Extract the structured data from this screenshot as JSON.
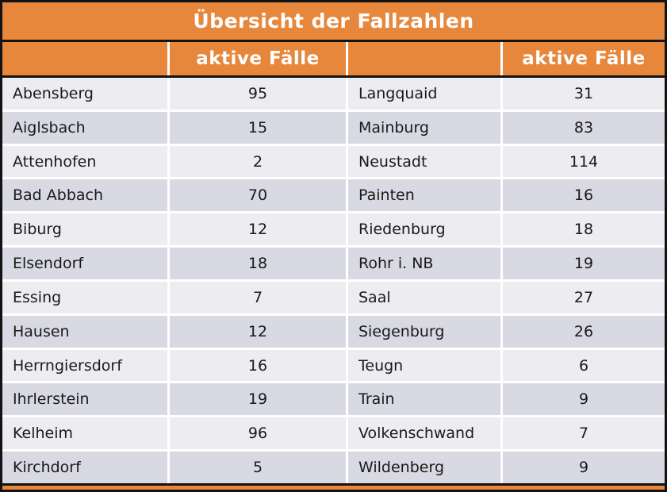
{
  "title": "Übersicht der Fallzahlen",
  "header": {
    "col2_label": "aktive Fälle",
    "col4_label": "aktive Fälle"
  },
  "rows": [
    {
      "left_name": "Abensberg",
      "left_value": "95",
      "right_name": "Langquaid",
      "right_value": "31"
    },
    {
      "left_name": "Aiglsbach",
      "left_value": "15",
      "right_name": "Mainburg",
      "right_value": "83"
    },
    {
      "left_name": "Attenhofen",
      "left_value": "2",
      "right_name": "Neustadt",
      "right_value": "114"
    },
    {
      "left_name": "Bad Abbach",
      "left_value": "70",
      "right_name": "Painten",
      "right_value": "16"
    },
    {
      "left_name": "Biburg",
      "left_value": "12",
      "right_name": "Riedenburg",
      "right_value": "18"
    },
    {
      "left_name": "Elsendorf",
      "left_value": "18",
      "right_name": "Rohr i. NB",
      "right_value": "19"
    },
    {
      "left_name": "Essing",
      "left_value": "7",
      "right_name": "Saal",
      "right_value": "27"
    },
    {
      "left_name": "Hausen",
      "left_value": "12",
      "right_name": "Siegenburg",
      "right_value": "26"
    },
    {
      "left_name": "Herrngiersdorf",
      "left_value": "16",
      "right_name": "Teugn",
      "right_value": "6"
    },
    {
      "left_name": "Ihrlerstein",
      "left_value": "19",
      "right_name": "Train",
      "right_value": "9"
    },
    {
      "left_name": "Kelheim",
      "left_value": "96",
      "right_name": "Volkenschwand",
      "right_value": "7"
    },
    {
      "left_name": "Kirchdorf",
      "left_value": "5",
      "right_name": "Wildenberg",
      "right_value": "9"
    }
  ],
  "colors": {
    "accent_orange": "#e7873c",
    "row_light": "#ececf1",
    "row_dark": "#d8d9e2",
    "border_black": "#121212",
    "header_text": "#ffffff",
    "body_text": "#1a1a1a"
  }
}
